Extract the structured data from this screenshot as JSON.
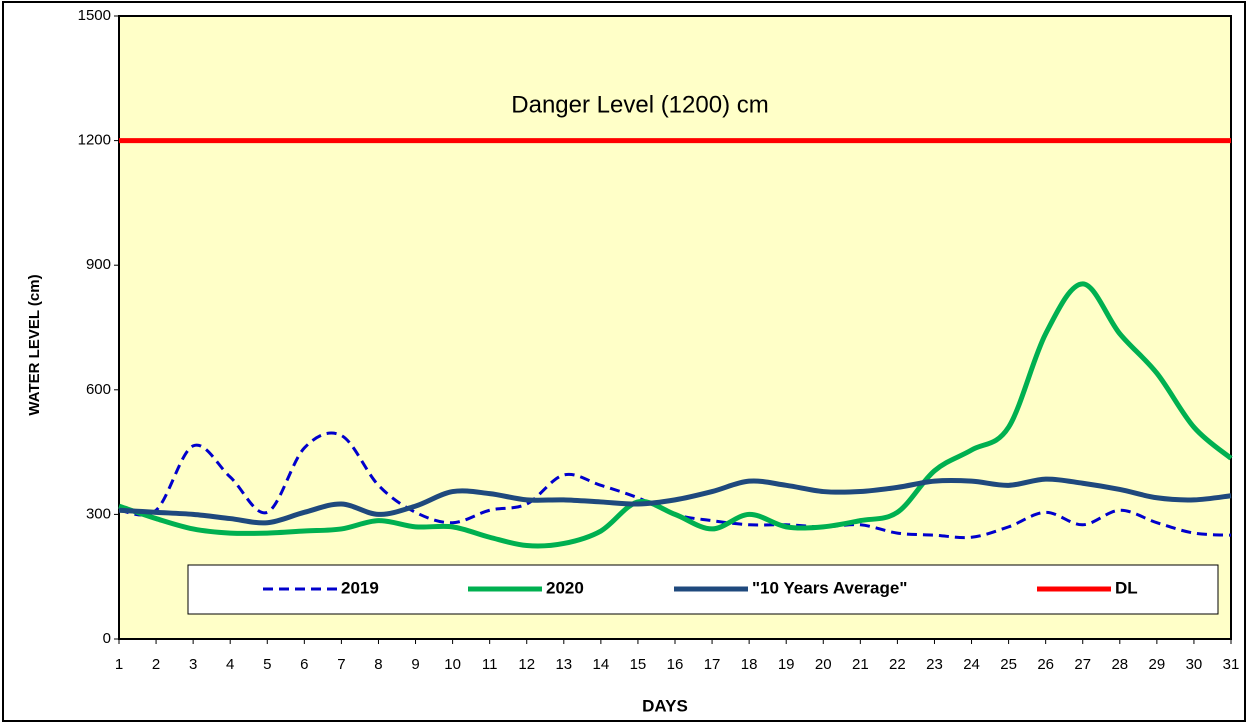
{
  "chart_data": {
    "type": "line",
    "annotation": "Danger Level (1200) cm",
    "x_label": "DAYS",
    "y_label": "WATER LEVEL (cm)",
    "categories": [
      "1",
      "2",
      "3",
      "4",
      "5",
      "6",
      "7",
      "8",
      "9",
      "10",
      "11",
      "12",
      "13",
      "14",
      "15",
      "16",
      "17",
      "18",
      "19",
      "20",
      "21",
      "22",
      "23",
      "24",
      "25",
      "26",
      "27",
      "28",
      "29",
      "30",
      "31"
    ],
    "ylim": [
      0,
      1500
    ],
    "yticks": [
      0,
      300,
      600,
      900,
      1200,
      1500
    ],
    "grid": false,
    "background": "#ffffc8",
    "series": [
      {
        "name": "2019",
        "color": "#0000cc",
        "dash": true,
        "values": [
          310,
          310,
          465,
          390,
          305,
          460,
          490,
          370,
          305,
          280,
          310,
          325,
          395,
          370,
          340,
          300,
          285,
          275,
          275,
          270,
          275,
          255,
          250,
          245,
          270,
          305,
          275,
          310,
          280,
          255,
          250
        ]
      },
      {
        "name": "2020",
        "color": "#00b050",
        "dash": false,
        "values": [
          320,
          290,
          265,
          255,
          255,
          260,
          265,
          285,
          270,
          270,
          245,
          225,
          230,
          260,
          330,
          300,
          265,
          300,
          270,
          270,
          285,
          305,
          405,
          455,
          510,
          735,
          855,
          735,
          640,
          510,
          435
        ]
      },
      {
        "name": "\"10 Years Average\"",
        "color": "#1f497d",
        "dash": false,
        "values": [
          310,
          305,
          300,
          290,
          280,
          305,
          325,
          300,
          320,
          355,
          350,
          335,
          335,
          330,
          325,
          335,
          355,
          380,
          370,
          355,
          355,
          365,
          380,
          380,
          370,
          385,
          375,
          360,
          340,
          335,
          345
        ]
      },
      {
        "name": "DL",
        "color": "#ff0000",
        "dash": false,
        "values": [
          1200,
          1200,
          1200,
          1200,
          1200,
          1200,
          1200,
          1200,
          1200,
          1200,
          1200,
          1200,
          1200,
          1200,
          1200,
          1200,
          1200,
          1200,
          1200,
          1200,
          1200,
          1200,
          1200,
          1200,
          1200,
          1200,
          1200,
          1200,
          1200,
          1200,
          1200
        ]
      }
    ]
  }
}
